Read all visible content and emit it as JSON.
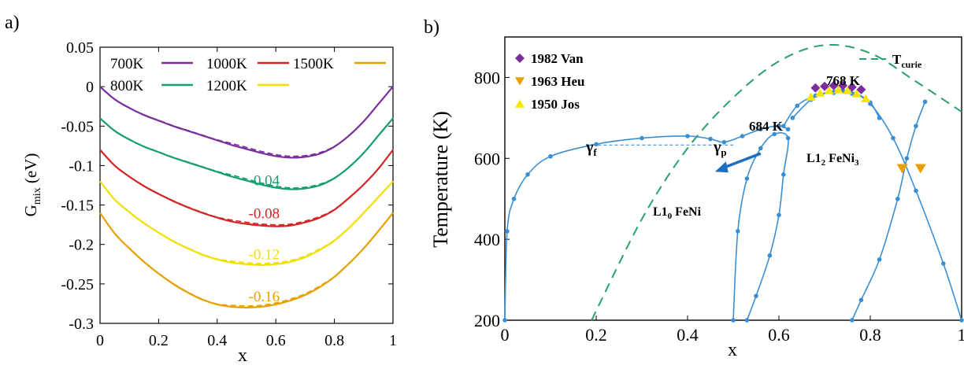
{
  "panels": {
    "a": {
      "label": "a)"
    },
    "b": {
      "label": "b)"
    }
  },
  "chart_data": [
    {
      "type": "line",
      "panel": "a",
      "xlabel": "x",
      "ylabel": "G",
      "ylabel_sub": "mix",
      "ylabel_suffix": " (eV)",
      "xlim": [
        0,
        1
      ],
      "ylim": [
        -0.3,
        0.05
      ],
      "xticks": [
        0,
        0.2,
        0.4,
        0.6,
        0.8,
        1
      ],
      "xtick_labels": [
        "0",
        "0.2",
        "0.4",
        "0.6",
        "0.8",
        "1"
      ],
      "yticks": [
        0.05,
        0,
        -0.05,
        -0.1,
        -0.15,
        -0.2,
        -0.25,
        -0.3
      ],
      "ytick_labels": [
        "0.05",
        "0",
        "-0.05",
        "-0.1",
        "-0.15",
        "-0.2",
        "-0.25",
        "-0.3"
      ],
      "legend_position": "top",
      "x": [
        0,
        0.05,
        0.1,
        0.15,
        0.2,
        0.25,
        0.3,
        0.35,
        0.4,
        0.45,
        0.5,
        0.55,
        0.6,
        0.65,
        0.7,
        0.75,
        0.8,
        0.85,
        0.9,
        0.95,
        1
      ],
      "series": [
        {
          "name": "700K",
          "color": "#7a2e9e",
          "offset": 0,
          "values": [
            0,
            -0.016,
            -0.027,
            -0.036,
            -0.043,
            -0.05,
            -0.056,
            -0.062,
            -0.068,
            -0.074,
            -0.079,
            -0.084,
            -0.088,
            -0.09,
            -0.089,
            -0.085,
            -0.076,
            -0.062,
            -0.044,
            -0.022,
            0
          ]
        },
        {
          "name": "800K",
          "color": "#169e6e",
          "offset": -0.04,
          "values": [
            -0.04,
            -0.056,
            -0.067,
            -0.076,
            -0.083,
            -0.09,
            -0.096,
            -0.102,
            -0.108,
            -0.114,
            -0.119,
            -0.124,
            -0.128,
            -0.13,
            -0.129,
            -0.125,
            -0.116,
            -0.102,
            -0.084,
            -0.062,
            -0.04
          ]
        },
        {
          "name": "1000K",
          "color": "#d42424",
          "offset": -0.08,
          "values": [
            -0.08,
            -0.1,
            -0.114,
            -0.126,
            -0.136,
            -0.145,
            -0.153,
            -0.16,
            -0.166,
            -0.171,
            -0.174,
            -0.176,
            -0.177,
            -0.176,
            -0.172,
            -0.166,
            -0.156,
            -0.141,
            -0.124,
            -0.104,
            -0.08
          ]
        },
        {
          "name": "1200K",
          "color": "#f0e000",
          "offset": -0.12,
          "values": [
            -0.12,
            -0.143,
            -0.159,
            -0.173,
            -0.185,
            -0.196,
            -0.205,
            -0.213,
            -0.219,
            -0.223,
            -0.225,
            -0.226,
            -0.225,
            -0.222,
            -0.216,
            -0.207,
            -0.195,
            -0.179,
            -0.16,
            -0.14,
            -0.12
          ]
        },
        {
          "name": "1500K",
          "color": "#e8a000",
          "offset": -0.16,
          "values": [
            -0.16,
            -0.186,
            -0.205,
            -0.222,
            -0.237,
            -0.25,
            -0.261,
            -0.27,
            -0.276,
            -0.279,
            -0.28,
            -0.279,
            -0.276,
            -0.271,
            -0.264,
            -0.254,
            -0.241,
            -0.224,
            -0.205,
            -0.183,
            -0.16
          ]
        }
      ],
      "annotations": [
        {
          "text": "-0.04",
          "x": 0.56,
          "y": -0.118,
          "color": "#169e6e"
        },
        {
          "text": "-0.08",
          "x": 0.56,
          "y": -0.16,
          "color": "#d42424"
        },
        {
          "text": "-0.12",
          "x": 0.56,
          "y": -0.212,
          "color": "#f0e000"
        },
        {
          "text": "-0.16",
          "x": 0.56,
          "y": -0.265,
          "color": "#e8a000"
        }
      ]
    },
    {
      "type": "scatter",
      "panel": "b",
      "xlabel": "x",
      "ylabel": "Temperature (K)",
      "xlim": [
        0,
        1
      ],
      "ylim": [
        200,
        900
      ],
      "xticks": [
        0,
        0.2,
        0.4,
        0.6,
        0.8,
        1
      ],
      "xtick_labels": [
        "0",
        "0.2",
        "0.4",
        "0.6",
        "0.8",
        "1"
      ],
      "yticks": [
        200,
        400,
        600,
        800
      ],
      "ytick_labels": [
        "200",
        "400",
        "600",
        "800"
      ],
      "line_color": "#3a8fd4",
      "curie_color": "#2aa06a",
      "curie_label": "T",
      "curie_label_sub": "curie",
      "legend": [
        {
          "name": "1982 Van",
          "color": "#7a2e9e",
          "marker": "diamond"
        },
        {
          "name": "1963 Heu",
          "color": "#e8a000",
          "marker": "triangle-down"
        },
        {
          "name": "1950 Jos",
          "color": "#f5e600",
          "marker": "triangle-up"
        }
      ],
      "curie": {
        "x": [
          0.19,
          0.3,
          0.4,
          0.5,
          0.6,
          0.7,
          0.8,
          0.9,
          1.0
        ],
        "y": [
          200,
          450,
          625,
          750,
          840,
          880,
          860,
          790,
          715
        ]
      },
      "gamma_boundary": {
        "x": [
          0,
          0.005,
          0.02,
          0.05,
          0.1,
          0.2,
          0.3,
          0.4,
          0.45,
          0.48,
          0.52,
          0.56,
          0.6,
          0.62
        ],
        "y": [
          200,
          420,
          500,
          560,
          605,
          635,
          650,
          655,
          648,
          640,
          655,
          672,
          680,
          672
        ]
      },
      "l10_dome": {
        "x": [
          0.5,
          0.51,
          0.53,
          0.56,
          0.59,
          0.62,
          0.61,
          0.6,
          0.58,
          0.55,
          0.53
        ],
        "y": [
          200,
          420,
          550,
          625,
          660,
          650,
          560,
          460,
          360,
          260,
          200
        ]
      },
      "l12_outer": {
        "x": [
          0.61,
          0.64,
          0.68,
          0.72,
          0.76,
          0.8,
          0.85,
          0.9,
          0.96,
          1.0
        ],
        "y": [
          680,
          730,
          755,
          762,
          760,
          735,
          650,
          520,
          340,
          200
        ]
      },
      "l12_inner": {
        "x": [
          0.76,
          0.78,
          0.82,
          0.86,
          0.88,
          0.9,
          0.92
        ],
        "y": [
          200,
          250,
          350,
          500,
          600,
          680,
          740
        ]
      },
      "peak_top": {
        "x": [
          0.63,
          0.67,
          0.71,
          0.74,
          0.77,
          0.8,
          0.82
        ],
        "y": [
          700,
          745,
          765,
          768,
          760,
          738,
          700
        ]
      },
      "van_points": {
        "x": [
          0.68,
          0.7,
          0.72,
          0.74,
          0.76,
          0.78
        ],
        "y": [
          774,
          778,
          780,
          780,
          776,
          770
        ]
      },
      "heu_points": {
        "x": [
          0.87,
          0.91
        ],
        "y": [
          575,
          575
        ]
      },
      "jos_points": {
        "x": [
          0.67,
          0.69,
          0.71,
          0.73,
          0.75,
          0.77,
          0.79
        ],
        "y": [
          752,
          762,
          768,
          770,
          768,
          760,
          748
        ]
      },
      "dashed_tie": {
        "x": [
          0.18,
          0.5
        ],
        "y": [
          633,
          633
        ]
      },
      "arrow": {
        "x1": 0.56,
        "y1": 612,
        "x2": 0.46,
        "y2": 567
      },
      "labels": {
        "gamma_f": "γ",
        "gamma_f_sub": "f",
        "gamma_p": "γ",
        "gamma_p_sub": "p",
        "t684": "684 K",
        "t768": "768 K",
        "l10": "L1",
        "l10_sub": "0",
        "l10_suffix": " FeNi",
        "l12": "L1",
        "l12_sub": "2",
        "l12_suffix": " FeNi",
        "l12_sub2": "3"
      }
    }
  ]
}
